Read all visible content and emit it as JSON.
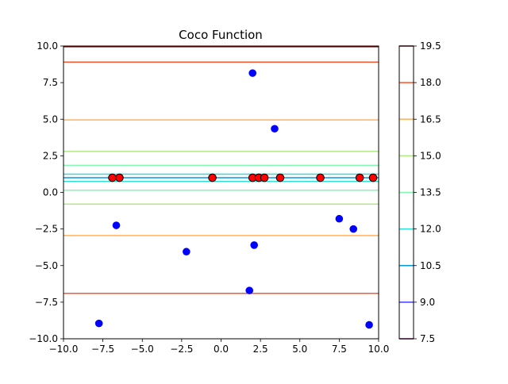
{
  "chart_data": {
    "type": "contour",
    "title": "Coco Function",
    "xlabel": "",
    "ylabel": "",
    "xlim": [
      -10,
      10
    ],
    "ylim": [
      -10,
      10
    ],
    "x_ticks": [
      -10,
      -7.5,
      -5,
      -2.5,
      0,
      2.5,
      5,
      7.5,
      10
    ],
    "y_ticks": [
      -10,
      -7.5,
      -5,
      -2.5,
      0,
      2.5,
      5,
      7.5,
      10
    ],
    "x_tick_labels": [
      "−10.0",
      "−7.5",
      "−5.0",
      "−2.5",
      "0.0",
      "2.5",
      "5.0",
      "7.5",
      "10.0"
    ],
    "y_tick_labels": [
      "−10.0",
      "−7.5",
      "−5.0",
      "−2.5",
      "0.0",
      "2.5",
      "5.0",
      "7.5",
      "10.0"
    ],
    "grid": false,
    "colormap": "rainbow",
    "contour_levels": [
      {
        "level": 7.5,
        "y": [],
        "color": "#80007f"
      },
      {
        "level": 9.0,
        "y": [],
        "color": "#4040f8"
      },
      {
        "level": 10.5,
        "y": [
          1.0
        ],
        "color": "#0099e8"
      },
      {
        "level": 12.0,
        "y": [
          0.75,
          1.25
        ],
        "color": "#28e0d8"
      },
      {
        "level": 13.5,
        "y": [
          0.15,
          1.85
        ],
        "color": "#80f8b0"
      },
      {
        "level": 15.0,
        "y": [
          -0.8,
          2.8
        ],
        "color": "#b0ea80"
      },
      {
        "level": 16.5,
        "y": [
          -2.95,
          4.95
        ],
        "color": "#ffb060"
      },
      {
        "level": 18.0,
        "y": [
          -6.9,
          8.9
        ],
        "color": "#ff5530"
      },
      {
        "level": 19.5,
        "y": [
          9.95
        ],
        "color": "#8b0000"
      }
    ],
    "colorbar": {
      "min": 7.5,
      "max": 19.5,
      "ticks": [
        7.5,
        9.0,
        10.5,
        12.0,
        13.5,
        15.0,
        16.5,
        18.0,
        19.5
      ],
      "tick_labels": [
        "7.5",
        "9.0",
        "10.5",
        "12.0",
        "13.5",
        "15.0",
        "16.5",
        "18.0",
        "19.5"
      ]
    },
    "series": [
      {
        "marker": "circle",
        "color": "#0000ff",
        "points": [
          [
            2.0,
            8.15
          ],
          [
            3.4,
            4.35
          ],
          [
            -6.65,
            -2.25
          ],
          [
            -2.2,
            -4.05
          ],
          [
            2.1,
            -3.6
          ],
          [
            7.5,
            -1.8
          ],
          [
            8.4,
            -2.5
          ],
          [
            1.8,
            -6.7
          ],
          [
            -7.75,
            -8.95
          ],
          [
            9.4,
            -9.05
          ]
        ]
      },
      {
        "marker": "circle",
        "color": "#ff0000",
        "edgecolor": "#000000",
        "points": [
          [
            -6.9,
            1.0
          ],
          [
            -6.45,
            1.0
          ],
          [
            -0.55,
            1.0
          ],
          [
            2.0,
            1.0
          ],
          [
            2.4,
            1.0
          ],
          [
            2.75,
            1.0
          ],
          [
            3.75,
            1.0
          ],
          [
            6.3,
            1.0
          ],
          [
            8.8,
            1.0
          ],
          [
            9.65,
            1.0
          ]
        ]
      }
    ]
  }
}
